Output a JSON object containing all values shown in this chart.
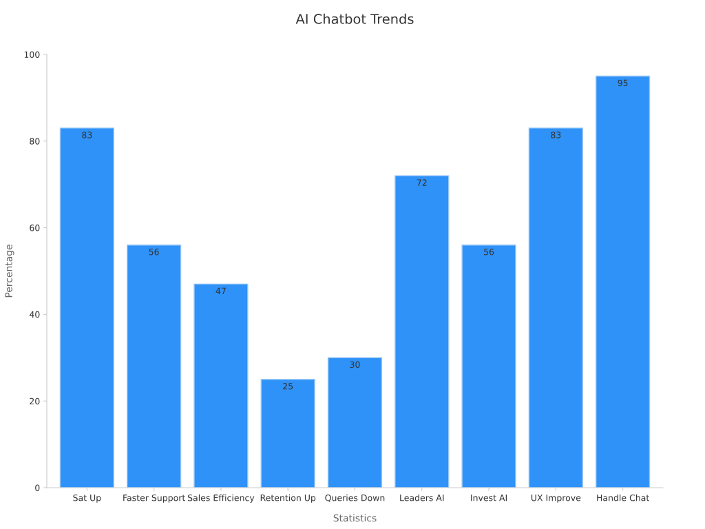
{
  "chart_data": {
    "type": "bar",
    "title": "AI Chatbot Trends",
    "xlabel": "Statistics",
    "ylabel": "Percentage",
    "categories": [
      "Sat Up",
      "Faster Support",
      "Sales Efficiency",
      "Retention Up",
      "Queries Down",
      "Leaders AI",
      "Invest AI",
      "UX Improve",
      "Handle Chat"
    ],
    "values": [
      83,
      56,
      47,
      25,
      30,
      72,
      56,
      83,
      95
    ],
    "color": "#2f92f8",
    "ylim": [
      0,
      100
    ],
    "yticks": [
      0,
      20,
      40,
      60,
      80,
      100
    ],
    "grid": false,
    "data_labels": true
  }
}
